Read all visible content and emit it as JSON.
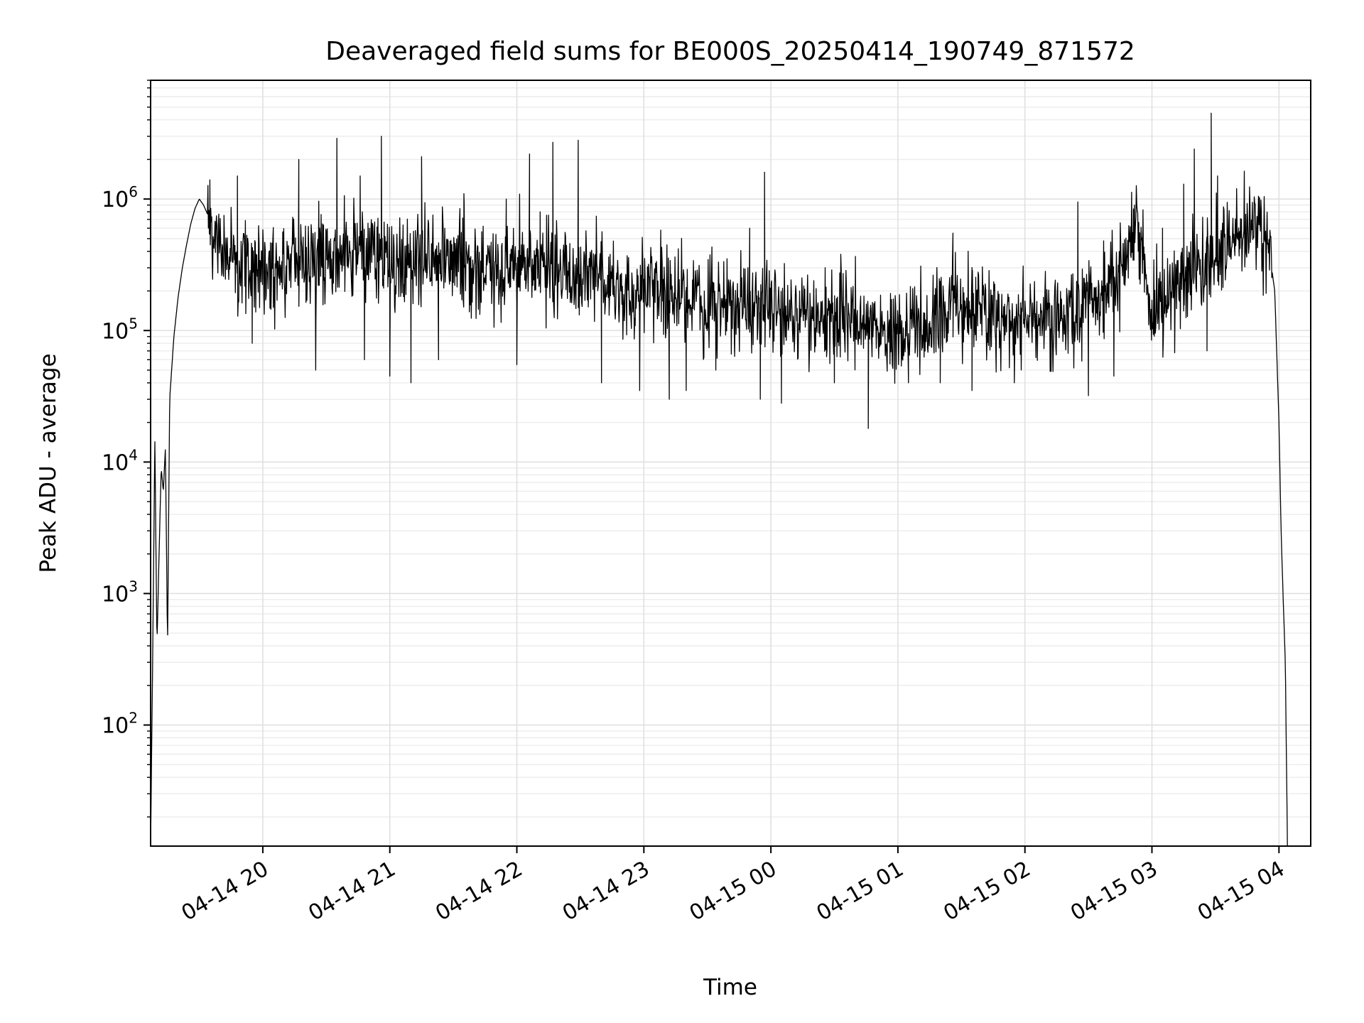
{
  "chart_data": {
    "type": "line",
    "title": "Deaveraged field sums for BE000S_20250414_190749_871572",
    "xlabel": "Time",
    "ylabel": "Peak ADU - average",
    "yscale": "log",
    "grid": true,
    "grid_which": "both",
    "xlim": [
      "2025-04-14 19:07",
      "2025-04-15 04:15"
    ],
    "ylim": [
      12,
      8000000
    ],
    "x_ticks": [
      "04-14 20",
      "04-14 21",
      "04-14 22",
      "04-14 23",
      "04-15 00",
      "04-15 01",
      "04-15 02",
      "04-15 03",
      "04-15 04"
    ],
    "y_ticks": [
      {
        "value": 100,
        "base": "10",
        "exp": "2"
      },
      {
        "value": 1000,
        "base": "10",
        "exp": "3"
      },
      {
        "value": 10000,
        "base": "10",
        "exp": "4"
      },
      {
        "value": 100000,
        "base": "10",
        "exp": "5"
      },
      {
        "value": 1000000,
        "base": "10",
        "exp": "6"
      }
    ],
    "series_color": "#000000",
    "series": [
      {
        "values": [
          [
            "2025-04-14 19:07",
            12
          ],
          [
            "2025-04-14 19:08",
            350
          ],
          [
            "2025-04-14 19:09",
            15000
          ],
          [
            "2025-04-14 19:10",
            400
          ],
          [
            "2025-04-14 19:11",
            2000
          ],
          [
            "2025-04-14 19:12",
            9000
          ],
          [
            "2025-04-14 19:13",
            6000
          ],
          [
            "2025-04-14 19:14",
            13000
          ],
          [
            "2025-04-14 19:15",
            380
          ],
          [
            "2025-04-14 19:16",
            30000
          ],
          [
            "2025-04-14 19:18",
            90000
          ],
          [
            "2025-04-14 19:20",
            180000
          ],
          [
            "2025-04-14 19:22",
            300000
          ],
          [
            "2025-04-14 19:24",
            450000
          ],
          [
            "2025-04-14 19:26",
            650000
          ],
          [
            "2025-04-14 19:28",
            850000
          ],
          [
            "2025-04-14 19:30",
            1000000
          ],
          [
            "2025-04-14 19:32",
            900000
          ],
          [
            "2025-04-14 19:35",
            700000
          ],
          [
            "2025-04-14 19:40",
            400000
          ],
          [
            "2025-04-14 19:50",
            350000
          ],
          [
            "2025-04-14 20:00",
            300000
          ],
          [
            "2025-04-14 20:15",
            330000
          ],
          [
            "2025-04-14 20:30",
            360000
          ],
          [
            "2025-04-14 20:45",
            380000
          ],
          [
            "2025-04-14 21:00",
            340000
          ],
          [
            "2025-04-14 21:15",
            330000
          ],
          [
            "2025-04-14 21:30",
            320000
          ],
          [
            "2025-04-14 21:45",
            300000
          ],
          [
            "2025-04-14 22:00",
            310000
          ],
          [
            "2025-04-14 22:15",
            320000
          ],
          [
            "2025-04-14 22:30",
            260000
          ],
          [
            "2025-04-14 22:45",
            230000
          ],
          [
            "2025-04-14 23:00",
            200000
          ],
          [
            "2025-04-14 23:15",
            180000
          ],
          [
            "2025-04-14 23:30",
            160000
          ],
          [
            "2025-04-14 23:45",
            155000
          ],
          [
            "2025-04-15 00:00",
            140000
          ],
          [
            "2025-04-15 00:15",
            130000
          ],
          [
            "2025-04-15 00:30",
            120000
          ],
          [
            "2025-04-15 00:45",
            110000
          ],
          [
            "2025-04-15 01:00",
            100000
          ],
          [
            "2025-04-15 01:15",
            110000
          ],
          [
            "2025-04-15 01:30",
            160000
          ],
          [
            "2025-04-15 01:45",
            130000
          ],
          [
            "2025-04-15 02:00",
            120000
          ],
          [
            "2025-04-15 02:15",
            125000
          ],
          [
            "2025-04-15 02:30",
            140000
          ],
          [
            "2025-04-15 02:40",
            200000
          ],
          [
            "2025-04-15 02:48",
            350000
          ],
          [
            "2025-04-15 02:52",
            600000
          ],
          [
            "2025-04-15 02:55",
            400000
          ],
          [
            "2025-04-15 03:00",
            140000
          ],
          [
            "2025-04-15 03:10",
            200000
          ],
          [
            "2025-04-15 03:20",
            300000
          ],
          [
            "2025-04-15 03:30",
            350000
          ],
          [
            "2025-04-15 03:40",
            500000
          ],
          [
            "2025-04-15 03:50",
            650000
          ],
          [
            "2025-04-15 03:55",
            450000
          ],
          [
            "2025-04-15 03:58",
            200000
          ],
          [
            "2025-04-15 04:00",
            20000
          ],
          [
            "2025-04-15 04:01",
            3000
          ],
          [
            "2025-04-15 04:02",
            900
          ],
          [
            "2025-04-15 04:03",
            300
          ],
          [
            "2025-04-15 04:04",
            12
          ]
        ],
        "spikes": [
          [
            "2025-04-14 19:35",
            1400000
          ],
          [
            "2025-04-14 19:48",
            1500000
          ],
          [
            "2025-04-14 19:55",
            80000
          ],
          [
            "2025-04-14 20:05",
            150000
          ],
          [
            "2025-04-14 20:17",
            2000000
          ],
          [
            "2025-04-14 20:25",
            50000
          ],
          [
            "2025-04-14 20:35",
            2900000
          ],
          [
            "2025-04-14 20:46",
            1500000
          ],
          [
            "2025-04-14 20:48",
            60000
          ],
          [
            "2025-04-14 20:56",
            3000000
          ],
          [
            "2025-04-14 21:00",
            45000
          ],
          [
            "2025-04-14 21:10",
            40000
          ],
          [
            "2025-04-14 21:15",
            2100000
          ],
          [
            "2025-04-14 21:23",
            60000
          ],
          [
            "2025-04-14 21:35",
            1100000
          ],
          [
            "2025-04-14 21:55",
            1000000
          ],
          [
            "2025-04-14 22:00",
            55000
          ],
          [
            "2025-04-14 22:06",
            2200000
          ],
          [
            "2025-04-14 22:11",
            800000
          ],
          [
            "2025-04-14 22:17",
            2700000
          ],
          [
            "2025-04-14 22:22",
            400000
          ],
          [
            "2025-04-14 22:29",
            2800000
          ],
          [
            "2025-04-14 22:40",
            40000
          ],
          [
            "2025-04-14 22:58",
            35000
          ],
          [
            "2025-04-14 23:12",
            30000
          ],
          [
            "2025-04-14 23:20",
            35000
          ],
          [
            "2025-04-14 23:34",
            50000
          ],
          [
            "2025-04-14 23:50",
            600000
          ],
          [
            "2025-04-14 23:55",
            30000
          ],
          [
            "2025-04-14 23:57",
            1600000
          ],
          [
            "2025-04-15 00:05",
            28000
          ],
          [
            "2025-04-15 00:30",
            40000
          ],
          [
            "2025-04-15 00:46",
            18000
          ],
          [
            "2025-04-15 01:05",
            40000
          ],
          [
            "2025-04-15 01:20",
            40000
          ],
          [
            "2025-04-15 01:26",
            550000
          ],
          [
            "2025-04-15 01:35",
            35000
          ],
          [
            "2025-04-15 01:55",
            40000
          ],
          [
            "2025-04-15 02:25",
            950000
          ],
          [
            "2025-04-15 02:30",
            32000
          ],
          [
            "2025-04-15 02:42",
            45000
          ],
          [
            "2025-04-15 03:05",
            600000
          ],
          [
            "2025-04-15 03:15",
            1300000
          ],
          [
            "2025-04-15 03:20",
            2400000
          ],
          [
            "2025-04-15 03:26",
            70000
          ],
          [
            "2025-04-15 03:28",
            4500000
          ],
          [
            "2025-04-15 03:31",
            1500000
          ],
          [
            "2025-04-15 03:40",
            1200000
          ]
        ]
      }
    ]
  }
}
